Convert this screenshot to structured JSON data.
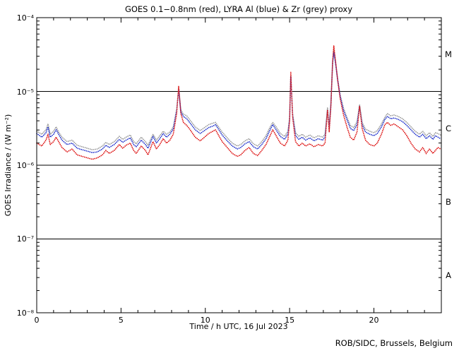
{
  "title": "GOES 0.1−0.8nm (red), LYRA Al (blue) & Zr (grey) proxy",
  "footer_credit": "ROB/SIDC, Brussels, Belgium",
  "chart_data": {
    "type": "scatter",
    "title": "GOES 0.1−0.8nm (red), LYRA Al (blue) & Zr (grey) proxy",
    "xlabel": "Time / h UTC, 16 Jul 2023",
    "ylabel": "GOES Irradiance / (W m⁻²)",
    "x_range": [
      0,
      24
    ],
    "y_log_range": [
      -8,
      -4
    ],
    "x_tick_labels": [
      "0",
      "5",
      "10",
      "15",
      "20"
    ],
    "x_ticks_major": [
      0,
      5,
      10,
      15,
      20
    ],
    "x_minor_step": 1,
    "y_decades": [
      -4,
      -5,
      -6,
      -7,
      -8
    ],
    "y_tick_labels": [
      "10⁻⁴",
      "10⁻⁵",
      "10⁻⁶",
      "10⁻⁷",
      "10⁻⁸"
    ],
    "class_lines_log": [
      -5,
      -6,
      -7
    ],
    "flare_classes": [
      {
        "label": "M",
        "log_mid": -4.5
      },
      {
        "label": "C",
        "log_mid": -5.5
      },
      {
        "label": "B",
        "log_mid": -6.5
      },
      {
        "label": "A",
        "log_mid": -7.5
      }
    ],
    "grid": "off",
    "legend": "in-title",
    "x_hours": [
      0.0,
      0.3,
      0.55,
      0.67,
      0.8,
      1.0,
      1.15,
      1.3,
      1.5,
      1.8,
      2.1,
      2.4,
      2.7,
      3.0,
      3.3,
      3.6,
      3.9,
      4.1,
      4.3,
      4.6,
      4.9,
      5.1,
      5.3,
      5.55,
      5.75,
      5.9,
      6.2,
      6.45,
      6.6,
      6.9,
      7.1,
      7.3,
      7.5,
      7.7,
      7.9,
      8.1,
      8.3,
      8.42,
      8.55,
      8.7,
      8.9,
      9.1,
      9.4,
      9.7,
      9.95,
      10.2,
      10.45,
      10.6,
      10.75,
      11.0,
      11.3,
      11.6,
      11.9,
      12.1,
      12.35,
      12.6,
      12.85,
      13.1,
      13.35,
      13.6,
      13.8,
      14.0,
      14.2,
      14.45,
      14.7,
      14.9,
      15.0,
      15.07,
      15.18,
      15.35,
      15.55,
      15.75,
      15.95,
      16.2,
      16.45,
      16.7,
      16.95,
      17.1,
      17.25,
      17.35,
      17.45,
      17.55,
      17.62,
      17.72,
      17.85,
      18.0,
      18.2,
      18.4,
      18.6,
      18.8,
      19.0,
      19.15,
      19.3,
      19.5,
      19.75,
      20.0,
      20.2,
      20.45,
      20.65,
      20.8,
      21.0,
      21.2,
      21.45,
      21.7,
      21.95,
      22.2,
      22.45,
      22.7,
      22.9,
      23.1,
      23.3,
      23.5,
      23.65,
      23.8,
      23.95
    ],
    "series": [
      {
        "name": "GOES 0.1-0.8nm",
        "color": "#dd1111",
        "log10_irradiance": [
          -5.7,
          -5.74,
          -5.66,
          -5.58,
          -5.72,
          -5.68,
          -5.62,
          -5.68,
          -5.76,
          -5.82,
          -5.78,
          -5.86,
          -5.88,
          -5.9,
          -5.92,
          -5.9,
          -5.86,
          -5.8,
          -5.84,
          -5.8,
          -5.72,
          -5.77,
          -5.73,
          -5.7,
          -5.8,
          -5.84,
          -5.74,
          -5.8,
          -5.86,
          -5.68,
          -5.78,
          -5.72,
          -5.64,
          -5.7,
          -5.66,
          -5.58,
          -5.3,
          -4.93,
          -5.3,
          -5.42,
          -5.46,
          -5.52,
          -5.62,
          -5.67,
          -5.62,
          -5.57,
          -5.54,
          -5.52,
          -5.58,
          -5.68,
          -5.76,
          -5.84,
          -5.88,
          -5.86,
          -5.8,
          -5.76,
          -5.84,
          -5.87,
          -5.8,
          -5.72,
          -5.62,
          -5.52,
          -5.6,
          -5.7,
          -5.74,
          -5.66,
          -5.4,
          -4.74,
          -5.35,
          -5.68,
          -5.74,
          -5.7,
          -5.74,
          -5.71,
          -5.75,
          -5.72,
          -5.74,
          -5.7,
          -5.25,
          -5.55,
          -5.2,
          -4.6,
          -4.38,
          -4.58,
          -4.85,
          -5.1,
          -5.32,
          -5.48,
          -5.62,
          -5.66,
          -5.55,
          -5.2,
          -5.5,
          -5.66,
          -5.72,
          -5.74,
          -5.7,
          -5.58,
          -5.45,
          -5.42,
          -5.46,
          -5.44,
          -5.48,
          -5.52,
          -5.6,
          -5.7,
          -5.78,
          -5.82,
          -5.76,
          -5.84,
          -5.78,
          -5.84,
          -5.8,
          -5.76,
          -5.78
        ]
      },
      {
        "name": "LYRA Al proxy",
        "color": "#2233cc",
        "log10_irradiance": [
          -5.57,
          -5.62,
          -5.56,
          -5.48,
          -5.62,
          -5.58,
          -5.52,
          -5.58,
          -5.66,
          -5.72,
          -5.7,
          -5.77,
          -5.79,
          -5.81,
          -5.83,
          -5.82,
          -5.78,
          -5.73,
          -5.76,
          -5.72,
          -5.65,
          -5.69,
          -5.66,
          -5.63,
          -5.72,
          -5.75,
          -5.66,
          -5.72,
          -5.77,
          -5.61,
          -5.7,
          -5.64,
          -5.57,
          -5.62,
          -5.58,
          -5.51,
          -5.26,
          -4.97,
          -5.28,
          -5.34,
          -5.37,
          -5.43,
          -5.52,
          -5.57,
          -5.53,
          -5.49,
          -5.47,
          -5.45,
          -5.5,
          -5.59,
          -5.67,
          -5.74,
          -5.78,
          -5.76,
          -5.71,
          -5.68,
          -5.75,
          -5.78,
          -5.72,
          -5.64,
          -5.54,
          -5.45,
          -5.52,
          -5.61,
          -5.65,
          -5.58,
          -5.38,
          -4.8,
          -5.33,
          -5.6,
          -5.65,
          -5.62,
          -5.66,
          -5.63,
          -5.67,
          -5.64,
          -5.66,
          -5.62,
          -5.25,
          -5.5,
          -5.18,
          -4.62,
          -4.47,
          -4.62,
          -4.85,
          -5.07,
          -5.26,
          -5.38,
          -5.5,
          -5.53,
          -5.45,
          -5.2,
          -5.45,
          -5.55,
          -5.58,
          -5.6,
          -5.57,
          -5.48,
          -5.38,
          -5.34,
          -5.37,
          -5.36,
          -5.38,
          -5.41,
          -5.46,
          -5.52,
          -5.58,
          -5.62,
          -5.58,
          -5.64,
          -5.6,
          -5.65,
          -5.6,
          -5.62,
          -5.64
        ]
      },
      {
        "name": "LYRA Zr proxy",
        "color": "#9a9a9a",
        "log10_irradiance": [
          -5.54,
          -5.58,
          -5.52,
          -5.44,
          -5.58,
          -5.54,
          -5.48,
          -5.55,
          -5.62,
          -5.68,
          -5.66,
          -5.73,
          -5.75,
          -5.77,
          -5.79,
          -5.78,
          -5.74,
          -5.69,
          -5.72,
          -5.68,
          -5.61,
          -5.65,
          -5.62,
          -5.59,
          -5.68,
          -5.71,
          -5.62,
          -5.68,
          -5.73,
          -5.58,
          -5.66,
          -5.6,
          -5.54,
          -5.58,
          -5.55,
          -5.48,
          -5.24,
          -4.95,
          -5.25,
          -5.31,
          -5.33,
          -5.39,
          -5.48,
          -5.53,
          -5.49,
          -5.45,
          -5.43,
          -5.42,
          -5.47,
          -5.55,
          -5.63,
          -5.7,
          -5.74,
          -5.72,
          -5.67,
          -5.64,
          -5.71,
          -5.74,
          -5.68,
          -5.6,
          -5.5,
          -5.42,
          -5.48,
          -5.57,
          -5.61,
          -5.54,
          -5.36,
          -4.78,
          -5.3,
          -5.56,
          -5.61,
          -5.58,
          -5.62,
          -5.59,
          -5.63,
          -5.6,
          -5.62,
          -5.58,
          -5.22,
          -5.46,
          -5.15,
          -4.6,
          -4.44,
          -4.6,
          -4.83,
          -5.05,
          -5.23,
          -5.35,
          -5.46,
          -5.49,
          -5.41,
          -5.18,
          -5.42,
          -5.51,
          -5.54,
          -5.56,
          -5.53,
          -5.44,
          -5.35,
          -5.3,
          -5.33,
          -5.32,
          -5.34,
          -5.37,
          -5.42,
          -5.48,
          -5.54,
          -5.58,
          -5.54,
          -5.6,
          -5.56,
          -5.61,
          -5.56,
          -5.57,
          -5.59
        ]
      }
    ]
  }
}
